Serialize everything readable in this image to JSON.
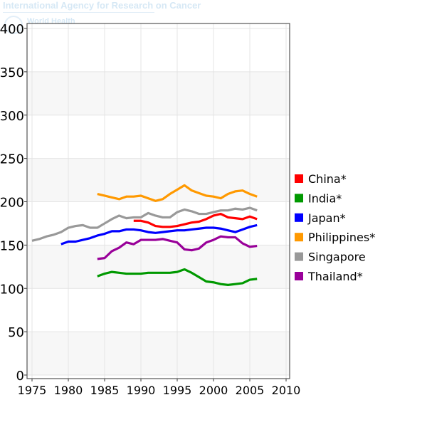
{
  "header": {
    "org": "International Agency for Research on Cancer",
    "org2": "World Health"
  },
  "chart_data": {
    "type": "line",
    "title": "",
    "xlabel": "",
    "ylabel": "",
    "xlim": [
      1974,
      2010.5
    ],
    "ylim": [
      -5,
      405
    ],
    "xticks": [
      1975,
      1980,
      1985,
      1990,
      1995,
      2000,
      2005,
      2010
    ],
    "yticks": [
      0,
      50,
      100,
      150,
      200,
      250,
      300,
      350,
      400
    ],
    "legend_position": "right",
    "series": [
      {
        "name": "China*",
        "color": "#ff0000",
        "start": 1989,
        "values": [
          178,
          178,
          176,
          172,
          171,
          171,
          172,
          174,
          176,
          177,
          180,
          184,
          186,
          182,
          181,
          180,
          183,
          180
        ]
      },
      {
        "name": "India*",
        "color": "#009900",
        "start": 1984,
        "values": [
          114,
          117,
          119,
          118,
          117,
          117,
          117,
          118,
          118,
          118,
          118,
          119,
          122,
          118,
          113,
          108,
          107,
          105,
          104,
          105,
          106,
          110,
          111
        ]
      },
      {
        "name": "Japan*",
        "color": "#0000ff",
        "start": 1979,
        "values": [
          151,
          154,
          154,
          156,
          158,
          161,
          163,
          166,
          166,
          168,
          168,
          167,
          165,
          164,
          165,
          166,
          167,
          167,
          168,
          169,
          170,
          170,
          169,
          167,
          165,
          168,
          171,
          173
        ]
      },
      {
        "name": "Philippines*",
        "color": "#ff9900",
        "start": 1984,
        "values": [
          209,
          207,
          205,
          203,
          206,
          206,
          207,
          204,
          201,
          203,
          209,
          214,
          219,
          213,
          210,
          207,
          206,
          204,
          209,
          212,
          213,
          209,
          206
        ]
      },
      {
        "name": "Singapore",
        "color": "#999999",
        "start": 1975,
        "values": [
          155,
          157,
          160,
          162,
          165,
          170,
          172,
          173,
          170,
          170,
          175,
          180,
          184,
          181,
          182,
          182,
          187,
          184,
          182,
          182,
          188,
          191,
          189,
          186,
          186,
          188,
          190,
          190,
          192,
          191,
          193,
          190
        ]
      },
      {
        "name": "Thailand*",
        "color": "#990099",
        "start": 1984,
        "values": [
          134,
          135,
          143,
          147,
          153,
          151,
          156,
          156,
          156,
          157,
          155,
          153,
          145,
          144,
          146,
          153,
          156,
          160,
          159,
          159,
          152,
          148,
          149
        ]
      }
    ]
  }
}
